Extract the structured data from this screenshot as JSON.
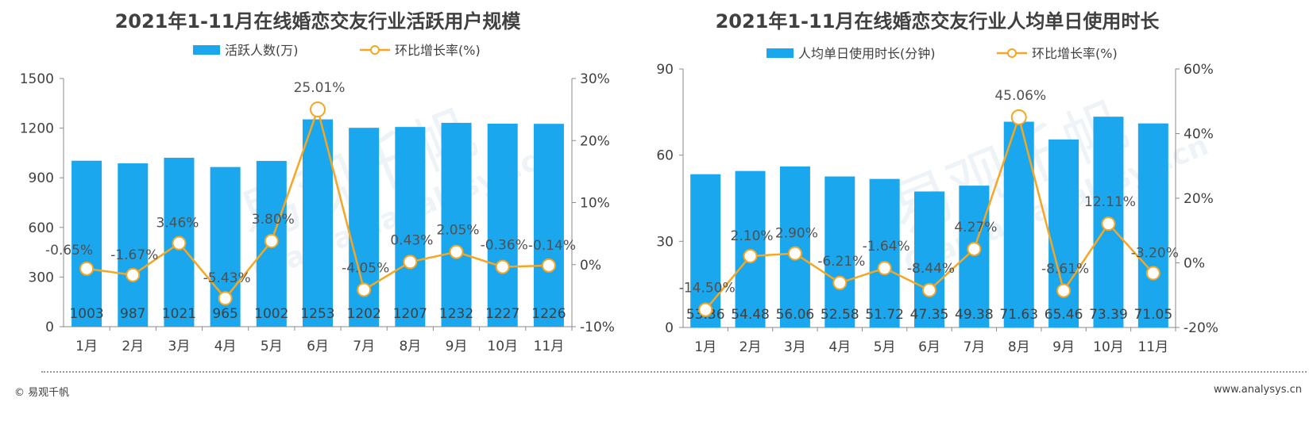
{
  "colors": {
    "bar": "#1aa7ee",
    "line": "#f5a623",
    "axis": "#8a8a8a",
    "text": "#404040"
  },
  "watermark": {
    "brand": "易观千帆",
    "site": "Qianfan.analysys.cn"
  },
  "footer": {
    "left": "© 易观千帆",
    "right": "www.analysys.cn"
  },
  "chart_data": [
    {
      "type": "bar",
      "title": "2021年1-11月在线婚恋交友行业活跃用户规模",
      "categories": [
        "1月",
        "2月",
        "3月",
        "4月",
        "5月",
        "6月",
        "7月",
        "8月",
        "9月",
        "10月",
        "11月"
      ],
      "bar_series": {
        "name": "活跃人数(万)",
        "values": [
          1003,
          987,
          1021,
          965,
          1002,
          1253,
          1202,
          1207,
          1232,
          1227,
          1226
        ]
      },
      "line_series": {
        "name": "环比增长率(%)",
        "values": [
          -0.65,
          -1.67,
          3.46,
          -5.43,
          3.8,
          25.01,
          -4.05,
          0.43,
          2.05,
          -0.36,
          -0.14
        ],
        "labels": [
          "-0.65%",
          "-1.67%",
          "3.46%",
          "-5.43%",
          "3.80%",
          "25.01%",
          "-4.05%",
          "0.43%",
          "2.05%",
          "-0.36%",
          "-0.14%"
        ]
      },
      "bar_labels": [
        "1003",
        "987",
        "1021",
        "965",
        "1002",
        "1253",
        "1202",
        "1207",
        "1232",
        "1227",
        "1226"
      ],
      "y_left": {
        "min": 0,
        "max": 1500,
        "ticks": [
          "0",
          "300",
          "600",
          "900",
          "1200",
          "1500"
        ]
      },
      "y_right": {
        "min": -10,
        "max": 30,
        "ticks": [
          "-10%",
          "0%",
          "10%",
          "20%",
          "30%"
        ]
      },
      "legend": "top-center",
      "grid": false
    },
    {
      "type": "bar",
      "title": "2021年1-11月在线婚恋交友行业人均单日使用时长",
      "categories": [
        "1月",
        "2月",
        "3月",
        "4月",
        "5月",
        "6月",
        "7月",
        "8月",
        "9月",
        "10月",
        "11月"
      ],
      "bar_series": {
        "name": "人均单日使用时长(分钟)",
        "values": [
          53.36,
          54.48,
          56.06,
          52.58,
          51.72,
          47.35,
          49.38,
          71.63,
          65.46,
          73.39,
          71.05
        ]
      },
      "line_series": {
        "name": "环比增长率(%)",
        "values": [
          -14.5,
          2.1,
          2.9,
          -6.21,
          -1.64,
          -8.44,
          4.27,
          45.06,
          -8.61,
          12.11,
          -3.2
        ],
        "labels": [
          "-14.50%",
          "2.10%",
          "2.90%",
          "-6.21%",
          "-1.64%",
          "-8.44%",
          "4.27%",
          "45.06%",
          "-8.61%",
          "12.11%",
          "-3.20%"
        ]
      },
      "bar_labels": [
        "53.36",
        "54.48",
        "56.06",
        "52.58",
        "51.72",
        "47.35",
        "49.38",
        "71.63",
        "65.46",
        "73.39",
        "71.05"
      ],
      "y_left": {
        "min": 0,
        "max": 90,
        "ticks": [
          "0",
          "30",
          "60",
          "90"
        ]
      },
      "y_right": {
        "min": -20,
        "max": 60,
        "ticks": [
          "-20%",
          "0%",
          "20%",
          "40%",
          "60%"
        ]
      },
      "legend": "top-center",
      "grid": false
    }
  ]
}
